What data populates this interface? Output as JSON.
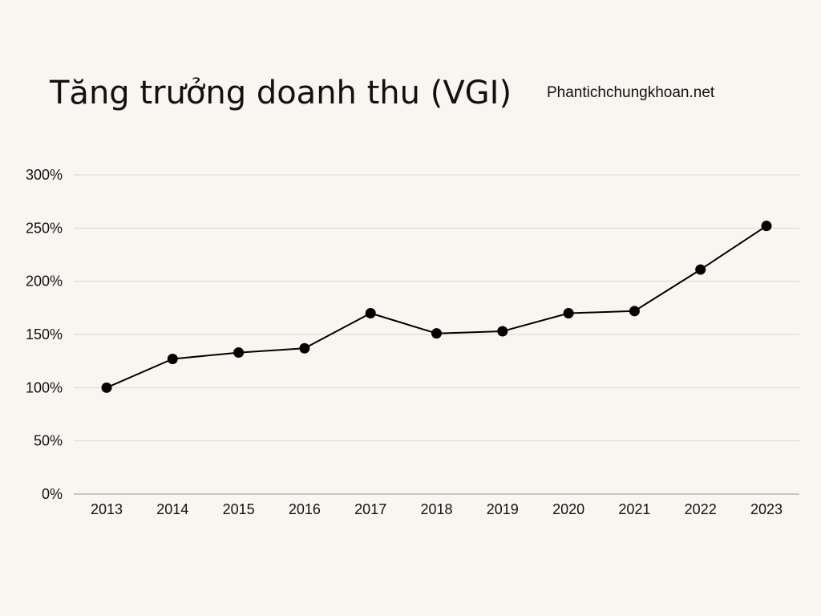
{
  "chart_data": {
    "type": "line",
    "title": "Tăng trưởng doanh thu (VGI)",
    "source": "Phantichchungkhoan.net",
    "xlabel": "",
    "ylabel": "",
    "categories": [
      "2013",
      "2014",
      "2015",
      "2016",
      "2017",
      "2018",
      "2019",
      "2020",
      "2021",
      "2022",
      "2023"
    ],
    "series": [
      {
        "values": [
          100,
          127,
          133,
          137,
          170,
          151,
          153,
          170,
          172,
          211,
          252
        ]
      }
    ],
    "ylim": [
      0,
      300
    ],
    "yticks": [
      0,
      50,
      100,
      150,
      200,
      250,
      300
    ],
    "ytick_labels": [
      "0%",
      "50%",
      "100%",
      "150%",
      "200%",
      "250%",
      "300%"
    ],
    "grid": true,
    "legend": "none",
    "colors": {
      "background": "#f9f6f1",
      "line": "#000000",
      "grid": "#d9d6d1",
      "axis": "#aaaaaa"
    }
  }
}
